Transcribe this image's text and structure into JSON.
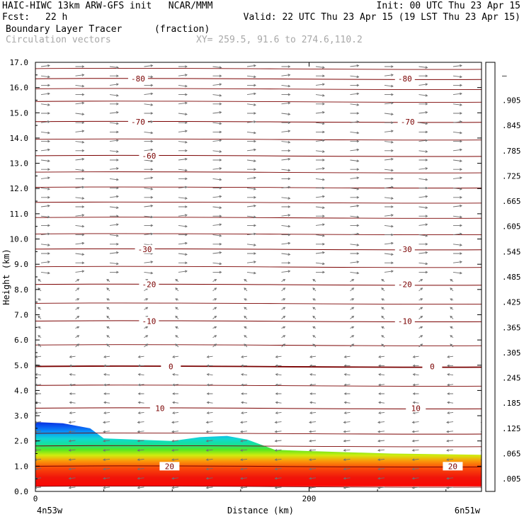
{
  "header": {
    "title_left": "HAIC-HIWC 13km ARW-GFS init   NCAR/MMM",
    "init": "Init: 00 UTC Thu 23 Apr 15",
    "fcst_label": "Fcst:",
    "fcst_value": "22 h",
    "valid": "Valid: 22 UTC Thu 23 Apr 15 (19 LST Thu 23 Apr 15)",
    "field": "Boundary Layer Tracer",
    "field_units": "(fraction)",
    "vectors": "Circulation vectors",
    "xy": "XY= 259.5, 91.6 to 274.6,110.2"
  },
  "chart_data": {
    "type": "heatmap",
    "xlabel": "Distance (km)",
    "ylabel": "Height (km)",
    "xlim": [
      0,
      326
    ],
    "ylim": [
      0,
      17
    ],
    "x_ticks": [
      {
        "v": 0,
        "label": "0"
      },
      {
        "v": 200,
        "label": "200"
      }
    ],
    "x_end_labels": {
      "left": "4n53w",
      "right": "6n51w"
    },
    "y_ticks": [
      "0.0",
      "1.0",
      "2.0",
      "3.0",
      "4.0",
      "5.0",
      "6.0",
      "7.0",
      "8.0",
      "9.0",
      "10.0",
      "11.0",
      "12.0",
      "13.0",
      "14.0",
      "15.0",
      "16.0",
      "17.0"
    ],
    "colorbar": {
      "labels": [
        ".005",
        ".065",
        ".125",
        ".185",
        ".245",
        ".305",
        ".365",
        ".425",
        ".485",
        ".545",
        ".605",
        ".665",
        ".725",
        ".785",
        ".845",
        ".905",
        "—"
      ],
      "colors": [
        "#ffffff",
        "#0a2fe0",
        "#0a64f5",
        "#0aa0f5",
        "#12d7d2",
        "#15e19b",
        "#1ee25a",
        "#5ae61e",
        "#9be614",
        "#d2eb0f",
        "#f5e10a",
        "#faaf0a",
        "#fa780a",
        "#fa4b0a",
        "#f5230a",
        "#e60a0a",
        "#c80000"
      ]
    },
    "tracer_top": [
      [
        0,
        2.75
      ],
      [
        20,
        2.7
      ],
      [
        40,
        2.5
      ],
      [
        50,
        2.1
      ],
      [
        100,
        2.0
      ],
      [
        120,
        2.15
      ],
      [
        140,
        2.2
      ],
      [
        155,
        2.05
      ],
      [
        175,
        1.65
      ],
      [
        200,
        1.6
      ],
      [
        260,
        1.5
      ],
      [
        326,
        1.45
      ]
    ],
    "temperature_isotherms": [
      {
        "label": "-80",
        "height": 16.35,
        "label_x": [
          75,
          270
        ]
      },
      {
        "label": "-70",
        "height": 14.65,
        "label_x": [
          75,
          272
        ]
      },
      {
        "label": "-60",
        "height": 13.3,
        "label_x": [
          83
        ]
      },
      {
        "label": "-30",
        "height": 9.6,
        "label_x": [
          80,
          270
        ]
      },
      {
        "label": "-20",
        "height": 8.2,
        "label_x": [
          83,
          270
        ]
      },
      {
        "label": "-10",
        "height": 6.75,
        "label_x": [
          83,
          270
        ]
      },
      {
        "label": "0",
        "height": 4.95,
        "label_x": [
          99,
          290
        ]
      },
      {
        "label": "10",
        "height": 3.3,
        "label_x": [
          91,
          278
        ]
      },
      {
        "label": "20",
        "height": 1.0,
        "label_x": [
          98,
          305
        ]
      }
    ],
    "other_isotherm_heights": [
      0.2,
      1.8,
      2.3,
      4.2,
      5.8,
      7.45,
      8.9,
      10.2,
      10.85,
      11.45,
      12.05,
      12.65,
      13.95,
      15.45,
      15.95,
      16.75
    ]
  }
}
